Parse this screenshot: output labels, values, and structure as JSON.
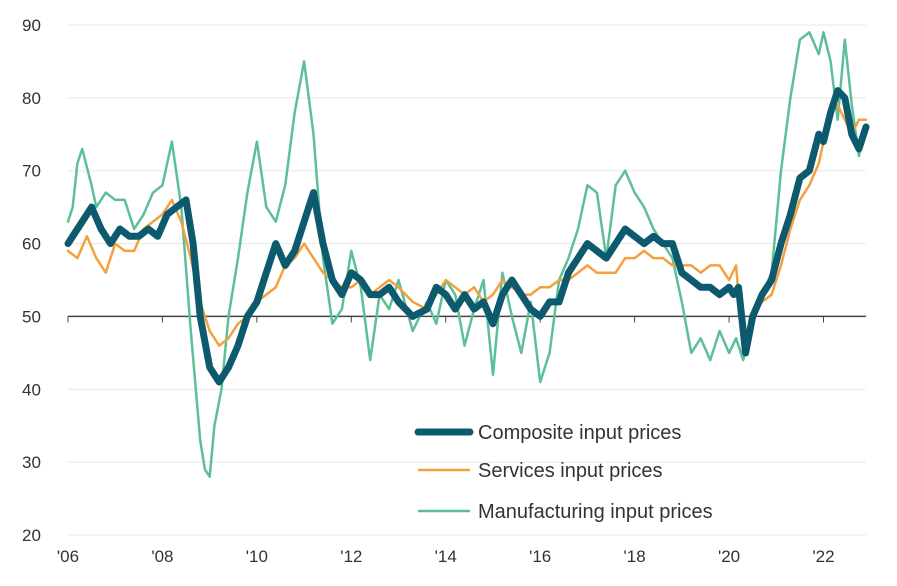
{
  "chart_data": {
    "type": "line",
    "title": "",
    "xlabel": "",
    "ylabel": "",
    "ylim": [
      20,
      90
    ],
    "yticks": [
      20,
      30,
      40,
      50,
      60,
      70,
      80,
      90
    ],
    "xlim": [
      2006.0,
      2022.9
    ],
    "xticks": [
      {
        "value": 2006,
        "label": "'06"
      },
      {
        "value": 2008,
        "label": "'08"
      },
      {
        "value": 2010,
        "label": "'10"
      },
      {
        "value": 2012,
        "label": "'12"
      },
      {
        "value": 2014,
        "label": "'14"
      },
      {
        "value": 2016,
        "label": "'16"
      },
      {
        "value": 2018,
        "label": "'18"
      },
      {
        "value": 2020,
        "label": "'20"
      },
      {
        "value": 2022,
        "label": "'22"
      }
    ],
    "reference_line": 50,
    "legend_position": "bottom-right",
    "series": [
      {
        "name": "Manufacturing input prices",
        "color": "#5cbf9a",
        "x": [
          2006.0,
          2006.1,
          2006.2,
          2006.3,
          2006.5,
          2006.6,
          2006.8,
          2007.0,
          2007.2,
          2007.4,
          2007.6,
          2007.8,
          2008.0,
          2008.2,
          2008.4,
          2008.6,
          2008.8,
          2008.9,
          2009.0,
          2009.1,
          2009.25,
          2009.4,
          2009.6,
          2009.8,
          2010.0,
          2010.2,
          2010.4,
          2010.6,
          2010.8,
          2011.0,
          2011.2,
          2011.4,
          2011.6,
          2011.8,
          2012.0,
          2012.2,
          2012.4,
          2012.6,
          2012.8,
          2013.0,
          2013.3,
          2013.6,
          2013.8,
          2014.0,
          2014.2,
          2014.4,
          2014.6,
          2014.8,
          2015.0,
          2015.2,
          2015.4,
          2015.6,
          2015.8,
          2016.0,
          2016.2,
          2016.4,
          2016.6,
          2016.8,
          2017.0,
          2017.2,
          2017.4,
          2017.6,
          2017.8,
          2018.0,
          2018.2,
          2018.4,
          2018.6,
          2018.8,
          2019.0,
          2019.2,
          2019.4,
          2019.6,
          2019.8,
          2020.0,
          2020.15,
          2020.3,
          2020.5,
          2020.7,
          2020.9,
          2021.1,
          2021.3,
          2021.5,
          2021.7,
          2021.9,
          2022.0,
          2022.15,
          2022.3,
          2022.45,
          2022.6,
          2022.75,
          2022.9
        ],
        "values": [
          63,
          65,
          71,
          73,
          68,
          65,
          67,
          66,
          66,
          62,
          64,
          67,
          68,
          74,
          65,
          48,
          33,
          29,
          28,
          35,
          40,
          50,
          58,
          67,
          74,
          65,
          63,
          68,
          78,
          85,
          75,
          58,
          49,
          51,
          59,
          54,
          44,
          53,
          51,
          55,
          48,
          52,
          49,
          55,
          53,
          46,
          51,
          55,
          42,
          56,
          50,
          45,
          52,
          41,
          45,
          55,
          58,
          62,
          68,
          67,
          58,
          68,
          70,
          67,
          65,
          62,
          60,
          58,
          52,
          45,
          47,
          44,
          48,
          45,
          47,
          44,
          50,
          53,
          56,
          70,
          80,
          88,
          89,
          86,
          89,
          85,
          77,
          88,
          79,
          72,
          76
        ]
      },
      {
        "name": "Services input prices",
        "color": "#f5a03f",
        "x": [
          2006.0,
          2006.2,
          2006.4,
          2006.6,
          2006.8,
          2007.0,
          2007.2,
          2007.4,
          2007.6,
          2007.8,
          2008.0,
          2008.2,
          2008.4,
          2008.6,
          2008.8,
          2009.0,
          2009.2,
          2009.4,
          2009.6,
          2009.8,
          2010.0,
          2010.2,
          2010.4,
          2010.6,
          2010.8,
          2011.0,
          2011.2,
          2011.4,
          2011.6,
          2011.8,
          2012.0,
          2012.2,
          2012.4,
          2012.6,
          2012.8,
          2013.0,
          2013.3,
          2013.6,
          2013.8,
          2014.0,
          2014.2,
          2014.4,
          2014.6,
          2014.8,
          2015.0,
          2015.2,
          2015.4,
          2015.6,
          2015.8,
          2016.0,
          2016.2,
          2016.4,
          2016.6,
          2016.8,
          2017.0,
          2017.2,
          2017.4,
          2017.6,
          2017.8,
          2018.0,
          2018.2,
          2018.4,
          2018.6,
          2018.8,
          2019.0,
          2019.2,
          2019.4,
          2019.6,
          2019.8,
          2020.0,
          2020.15,
          2020.3,
          2020.5,
          2020.7,
          2020.9,
          2021.1,
          2021.3,
          2021.5,
          2021.7,
          2021.9,
          2022.0,
          2022.15,
          2022.3,
          2022.45,
          2022.6,
          2022.75,
          2022.9
        ],
        "values": [
          59,
          58,
          61,
          58,
          56,
          60,
          59,
          59,
          62,
          63,
          64,
          66,
          63,
          58,
          52,
          48,
          46,
          47,
          49,
          50,
          52,
          53,
          54,
          57,
          58,
          60,
          58,
          56,
          55,
          54,
          54,
          55,
          53,
          54,
          55,
          54,
          52,
          51,
          53,
          55,
          54,
          53,
          54,
          52,
          53,
          55,
          54,
          53,
          53,
          54,
          54,
          55,
          55,
          56,
          57,
          56,
          56,
          56,
          58,
          58,
          59,
          58,
          58,
          57,
          57,
          57,
          56,
          57,
          57,
          55,
          57,
          45,
          50,
          52,
          53,
          57,
          62,
          66,
          68,
          71,
          74,
          79,
          79,
          77,
          75,
          77,
          77
        ]
      },
      {
        "name": "Composite input prices",
        "color": "#0d5a6e",
        "x": [
          2006.0,
          2006.1,
          2006.3,
          2006.5,
          2006.7,
          2006.9,
          2007.1,
          2007.3,
          2007.5,
          2007.7,
          2007.9,
          2008.1,
          2008.3,
          2008.5,
          2008.65,
          2008.8,
          2009.0,
          2009.2,
          2009.4,
          2009.6,
          2009.8,
          2010.0,
          2010.2,
          2010.4,
          2010.6,
          2010.8,
          2011.0,
          2011.2,
          2011.4,
          2011.6,
          2011.8,
          2012.0,
          2012.2,
          2012.4,
          2012.6,
          2012.8,
          2013.0,
          2013.3,
          2013.6,
          2013.8,
          2014.0,
          2014.2,
          2014.4,
          2014.6,
          2014.8,
          2015.0,
          2015.2,
          2015.4,
          2015.6,
          2015.8,
          2016.0,
          2016.2,
          2016.4,
          2016.6,
          2016.8,
          2017.0,
          2017.2,
          2017.4,
          2017.6,
          2017.8,
          2018.0,
          2018.2,
          2018.4,
          2018.6,
          2018.8,
          2019.0,
          2019.2,
          2019.4,
          2019.6,
          2019.8,
          2020.0,
          2020.1,
          2020.2,
          2020.35,
          2020.5,
          2020.7,
          2020.9,
          2021.1,
          2021.3,
          2021.5,
          2021.7,
          2021.9,
          2022.0,
          2022.15,
          2022.3,
          2022.45,
          2022.6,
          2022.75,
          2022.9
        ],
        "values": [
          60,
          61,
          63,
          65,
          62,
          60,
          62,
          61,
          61,
          62,
          61,
          64,
          65,
          66,
          60,
          50,
          43,
          41,
          43,
          46,
          50,
          52,
          56,
          60,
          57,
          59,
          63,
          67,
          60,
          55,
          53,
          56,
          55,
          53,
          53,
          54,
          52,
          50,
          51,
          54,
          53,
          51,
          53,
          51,
          52,
          49,
          53,
          55,
          53,
          51,
          50,
          52,
          52,
          56,
          58,
          60,
          59,
          58,
          60,
          62,
          61,
          60,
          61,
          60,
          60,
          56,
          55,
          54,
          54,
          53,
          54,
          53,
          54,
          45,
          50,
          53,
          55,
          60,
          64,
          69,
          70,
          75,
          74,
          78,
          81,
          80,
          75,
          73,
          76
        ]
      }
    ]
  }
}
